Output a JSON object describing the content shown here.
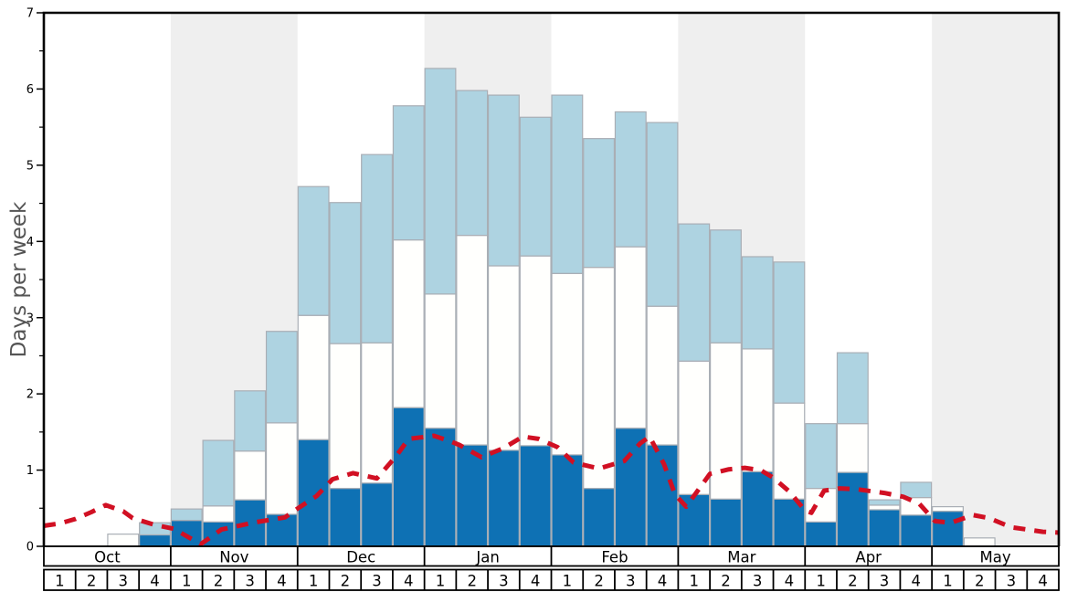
{
  "chart_data": {
    "type": "bar",
    "title": "",
    "ylabel": "Days per week",
    "xlabel": "",
    "ylim": [
      0,
      7
    ],
    "y_major_ticks": [
      "0",
      "1",
      "2",
      "3",
      "4",
      "5",
      "6",
      "7"
    ],
    "y_minor_step": 0.5,
    "grid": "off",
    "legend": "none",
    "months": [
      {
        "label": "Oct",
        "shaded": false
      },
      {
        "label": "Nov",
        "shaded": true
      },
      {
        "label": "Dec",
        "shaded": false
      },
      {
        "label": "Jan",
        "shaded": true
      },
      {
        "label": "Feb",
        "shaded": false
      },
      {
        "label": "Mar",
        "shaded": true
      },
      {
        "label": "Apr",
        "shaded": false
      },
      {
        "label": "May",
        "shaded": true
      }
    ],
    "week_labels": [
      "1",
      "2",
      "3",
      "4"
    ],
    "weeks_per_month": 4,
    "series": [
      {
        "name": "dark-blue-bottom-segment",
        "color": "#0e71b4",
        "values": [
          0,
          0,
          0,
          0.15,
          0.34,
          0.32,
          0.61,
          0.42,
          1.4,
          0.76,
          0.83,
          1.82,
          1.55,
          1.33,
          1.26,
          1.32,
          1.2,
          0.76,
          1.55,
          1.33,
          0.68,
          0.62,
          0.98,
          0.62,
          0.32,
          0.97,
          0.48,
          0.41,
          0.46,
          0,
          0,
          0
        ]
      },
      {
        "name": "white-middle-segment",
        "color": "#fffffd",
        "values": [
          0,
          0,
          0.16,
          0,
          0,
          0.21,
          0.64,
          1.2,
          1.63,
          1.9,
          1.84,
          2.2,
          1.76,
          2.75,
          2.42,
          2.49,
          2.38,
          2.9,
          2.38,
          1.82,
          1.75,
          2.05,
          1.61,
          1.26,
          0.44,
          0.64,
          0.06,
          0.23,
          0.06,
          0.11,
          0,
          0
        ]
      },
      {
        "name": "light-blue-top-segment",
        "color": "#aed3e1",
        "values": [
          0,
          0,
          0,
          0.16,
          0.15,
          0.86,
          0.79,
          1.2,
          1.69,
          1.85,
          2.47,
          1.76,
          2.96,
          1.9,
          2.24,
          1.82,
          2.34,
          1.69,
          1.77,
          2.41,
          1.8,
          1.48,
          1.21,
          1.85,
          0.85,
          0.93,
          0.07,
          0.2,
          0,
          0,
          0,
          0
        ]
      }
    ],
    "trend_line": {
      "name": "red-dashed-line",
      "color": "#d11023",
      "style": "dashed",
      "points_week_units": [
        [
          0,
          0.27
        ],
        [
          0.5,
          0.3
        ],
        [
          1.0,
          0.36
        ],
        [
          1.5,
          0.45
        ],
        [
          1.95,
          0.54
        ],
        [
          2.5,
          0.46
        ],
        [
          2.8,
          0.37
        ],
        [
          3.5,
          0.28
        ],
        [
          4.1,
          0.23
        ],
        [
          4.6,
          0.11
        ],
        [
          4.95,
          0.03
        ],
        [
          5.6,
          0.22
        ],
        [
          6.6,
          0.31
        ],
        [
          7.6,
          0.38
        ],
        [
          8.05,
          0.51
        ],
        [
          8.6,
          0.66
        ],
        [
          9.1,
          0.88
        ],
        [
          9.75,
          0.96
        ],
        [
          10.5,
          0.89
        ],
        [
          11.1,
          1.18
        ],
        [
          11.5,
          1.41
        ],
        [
          12.3,
          1.45
        ],
        [
          12.8,
          1.38
        ],
        [
          13.1,
          1.33
        ],
        [
          13.8,
          1.17
        ],
        [
          14.5,
          1.29
        ],
        [
          15.1,
          1.44
        ],
        [
          15.6,
          1.41
        ],
        [
          16.2,
          1.3
        ],
        [
          16.7,
          1.1
        ],
        [
          17.5,
          1.02
        ],
        [
          18.3,
          1.12
        ],
        [
          18.8,
          1.35
        ],
        [
          19.1,
          1.44
        ],
        [
          19.55,
          1.08
        ],
        [
          19.9,
          0.68
        ],
        [
          20.25,
          0.52
        ],
        [
          20.6,
          0.72
        ],
        [
          21.0,
          0.95
        ],
        [
          21.6,
          1.01
        ],
        [
          22.1,
          1.03
        ],
        [
          22.6,
          1.0
        ],
        [
          23.0,
          0.9
        ],
        [
          23.5,
          0.72
        ],
        [
          24.0,
          0.47
        ],
        [
          24.2,
          0.44
        ],
        [
          24.6,
          0.73
        ],
        [
          25.1,
          0.76
        ],
        [
          25.6,
          0.75
        ],
        [
          26.5,
          0.7
        ],
        [
          27.1,
          0.65
        ],
        [
          27.6,
          0.56
        ],
        [
          28.1,
          0.33
        ],
        [
          28.6,
          0.31
        ],
        [
          29.3,
          0.41
        ],
        [
          29.8,
          0.37
        ],
        [
          30.5,
          0.25
        ],
        [
          31.5,
          0.19
        ],
        [
          32,
          0.18
        ]
      ]
    },
    "colors": {
      "shaded_month_stripe": "#efefef",
      "bar_border": "#a9aeb5",
      "frame": "#000000",
      "axis_title": "#555555",
      "tick_label": "#000000",
      "label_row_background": "#ffffff"
    }
  }
}
